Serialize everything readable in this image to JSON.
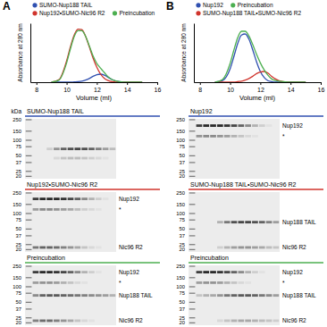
{
  "panel_labels": [
    "A",
    "B"
  ],
  "chart_data": [
    {
      "type": "line",
      "x_label": "Volume (ml)",
      "y_label": "Absorbance at 280 nm",
      "x": [
        9,
        9.5,
        10,
        10.25,
        10.5,
        10.75,
        11,
        11.25,
        11.5,
        11.75,
        12,
        12.25,
        12.5,
        12.75,
        13,
        13.5,
        14,
        15
      ],
      "xlim": [
        7.6,
        16
      ],
      "xticks": [
        8,
        10,
        12,
        14,
        16
      ],
      "ylim": [
        0,
        1.1
      ],
      "tick_labels": "x",
      "legend": "top-left",
      "series": [
        {
          "name": "SUMO-Nup188 TAIL",
          "color": "#3050b0",
          "values": [
            0,
            0,
            0,
            0,
            0.005,
            0.01,
            0.02,
            0.04,
            0.07,
            0.11,
            0.14,
            0.15,
            0.13,
            0.09,
            0.05,
            0.01,
            0,
            0
          ]
        },
        {
          "name": "Nup192•SUMO-Nic96 R2",
          "color": "#d0342c",
          "values": [
            0,
            0.05,
            0.4,
            0.66,
            0.88,
            0.99,
            0.98,
            0.86,
            0.66,
            0.45,
            0.28,
            0.15,
            0.07,
            0.03,
            0.01,
            0,
            0,
            0
          ]
        },
        {
          "name": "Preincubation",
          "color": "#4caf50",
          "values": [
            0,
            0.04,
            0.36,
            0.62,
            0.85,
            0.96,
            0.96,
            0.86,
            0.68,
            0.49,
            0.35,
            0.26,
            0.18,
            0.1,
            0.05,
            0.01,
            0,
            0
          ]
        }
      ]
    },
    {
      "type": "line",
      "x_label": "Volume (ml)",
      "y_label": "Absorbance at 280 nm",
      "x": [
        9,
        9.5,
        10,
        10.25,
        10.5,
        10.75,
        11,
        11.25,
        11.5,
        11.75,
        12,
        12.25,
        12.5,
        12.75,
        13,
        13.5,
        14,
        15
      ],
      "xlim": [
        7.6,
        16
      ],
      "xticks": [
        8,
        10,
        12,
        14,
        16
      ],
      "ylim": [
        0,
        1.1
      ],
      "tick_labels": "x",
      "legend": "top-left",
      "series": [
        {
          "name": "Nup192",
          "color": "#3050b0",
          "values": [
            0,
            0.03,
            0.25,
            0.48,
            0.72,
            0.88,
            0.9,
            0.8,
            0.6,
            0.38,
            0.2,
            0.09,
            0.03,
            0.01,
            0,
            0,
            0,
            0
          ]
        },
        {
          "name": "SUMO-Nup188 TAIL•SUMO-Nic96 R2",
          "color": "#d0342c",
          "values": [
            0,
            0,
            0,
            0,
            0.01,
            0.02,
            0.04,
            0.07,
            0.11,
            0.16,
            0.19,
            0.2,
            0.17,
            0.11,
            0.06,
            0.01,
            0,
            0
          ]
        },
        {
          "name": "Preincubation",
          "color": "#4caf50",
          "values": [
            0,
            0.05,
            0.35,
            0.6,
            0.83,
            0.95,
            0.95,
            0.86,
            0.7,
            0.52,
            0.36,
            0.23,
            0.13,
            0.06,
            0.03,
            0.01,
            0,
            0
          ]
        }
      ]
    }
  ],
  "gels": [
    {
      "panel": 0,
      "title": "SUMO-Nup188 TAIL",
      "color": "#3050b0",
      "unit": "kDa",
      "ylim": [
        260,
        18
      ],
      "markers": [
        250,
        150,
        100,
        75,
        50,
        37,
        25,
        20
      ],
      "bands": [
        {
          "kda": 68,
          "intensity": [
            0,
            0,
            0.15,
            0.45,
            0.7,
            0.8,
            0.85,
            0.8,
            0.7,
            0.55,
            0.4,
            0.25
          ]
        },
        {
          "kda": 45,
          "intensity": [
            0,
            0,
            0,
            0.1,
            0.2,
            0.25,
            0.25,
            0.2,
            0.15,
            0.1,
            0.05,
            0
          ]
        }
      ]
    },
    {
      "panel": 0,
      "title": "Nup192•SUMO-Nic96 R2",
      "color": "#d0342c",
      "ylim": [
        260,
        18
      ],
      "markers": [
        250,
        150,
        100,
        75,
        50,
        37,
        25,
        20
      ],
      "bands": [
        {
          "label": "Nup192",
          "kda": 192,
          "intensity": [
            0.9,
            1,
            1,
            1,
            0.95,
            0.85,
            0.7,
            0.5,
            0.3,
            0.15,
            0.05,
            0
          ]
        },
        {
          "label": "*",
          "kda": 120,
          "intensity": [
            0.4,
            0.5,
            0.5,
            0.45,
            0.4,
            0.35,
            0.25,
            0.15,
            0.1,
            0.05,
            0,
            0
          ]
        },
        {
          "label": "Nic96 R2",
          "kda": 22,
          "intensity": [
            0.6,
            0.7,
            0.7,
            0.65,
            0.55,
            0.45,
            0.35,
            0.2,
            0.1,
            0.05,
            0,
            0
          ]
        }
      ]
    },
    {
      "panel": 0,
      "title": "Preincubation",
      "color": "#4caf50",
      "ylim": [
        260,
        18
      ],
      "markers": [
        250,
        150,
        100,
        75,
        50,
        37,
        25,
        20
      ],
      "bands": [
        {
          "label": "Nup192",
          "kda": 192,
          "intensity": [
            0.9,
            1,
            1,
            0.95,
            0.85,
            0.7,
            0.5,
            0.3,
            0.15,
            0.05,
            0,
            0
          ]
        },
        {
          "label": "*",
          "kda": 120,
          "intensity": [
            0.4,
            0.45,
            0.45,
            0.4,
            0.3,
            0.2,
            0.1,
            0.05,
            0,
            0,
            0,
            0
          ]
        },
        {
          "label": "Nup188 TAIL",
          "kda": 68,
          "intensity": [
            0.5,
            0.7,
            0.75,
            0.75,
            0.7,
            0.65,
            0.6,
            0.55,
            0.5,
            0.45,
            0.4,
            0.3
          ]
        },
        {
          "label": "Nic96 R2",
          "kda": 22,
          "intensity": [
            0.55,
            0.65,
            0.65,
            0.55,
            0.45,
            0.35,
            0.2,
            0.1,
            0.05,
            0,
            0,
            0
          ]
        }
      ]
    },
    {
      "panel": 1,
      "title": "Nup192",
      "color": "#3050b0",
      "ylim": [
        260,
        18
      ],
      "markers": [
        250,
        150,
        100,
        75,
        50,
        37,
        25,
        20
      ],
      "bands": [
        {
          "label": "Nup192",
          "kda": 192,
          "intensity": [
            0.9,
            1,
            1,
            1,
            0.95,
            0.85,
            0.7,
            0.5,
            0.3,
            0.15,
            0.05,
            0
          ]
        },
        {
          "label": "*",
          "kda": 120,
          "intensity": [
            0.45,
            0.5,
            0.5,
            0.45,
            0.4,
            0.3,
            0.2,
            0.1,
            0.05,
            0,
            0,
            0
          ]
        }
      ]
    },
    {
      "panel": 1,
      "title": "SUMO-Nup188 TAIL•SUMO-Nic96 R2",
      "color": "#d0342c",
      "ylim": [
        260,
        18
      ],
      "markers": [
        250,
        150,
        100,
        75,
        50,
        37,
        25,
        20
      ],
      "bands": [
        {
          "label": "Nup188 TAIL",
          "kda": 68,
          "intensity": [
            0,
            0,
            0,
            0.3,
            0.6,
            0.8,
            0.85,
            0.85,
            0.8,
            0.7,
            0.55,
            0.4
          ]
        },
        {
          "label": "Nic96 R2",
          "kda": 22,
          "intensity": [
            0,
            0,
            0,
            0.15,
            0.3,
            0.4,
            0.45,
            0.45,
            0.4,
            0.35,
            0.25,
            0.2
          ]
        }
      ]
    },
    {
      "panel": 1,
      "title": "Preincubation",
      "color": "#4caf50",
      "ylim": [
        260,
        18
      ],
      "markers": [
        250,
        150,
        100,
        75,
        50,
        37,
        25,
        20
      ],
      "bands": [
        {
          "label": "Nup192",
          "kda": 192,
          "intensity": [
            0.9,
            1,
            1,
            0.95,
            0.85,
            0.7,
            0.5,
            0.3,
            0.15,
            0.05,
            0,
            0
          ]
        },
        {
          "label": "*",
          "kda": 120,
          "intensity": [
            0.4,
            0.45,
            0.45,
            0.4,
            0.3,
            0.2,
            0.1,
            0.05,
            0,
            0,
            0,
            0
          ]
        },
        {
          "label": "Nup188 TAIL",
          "kda": 68,
          "intensity": [
            0.2,
            0.3,
            0.35,
            0.45,
            0.6,
            0.7,
            0.75,
            0.75,
            0.7,
            0.6,
            0.5,
            0.4
          ]
        },
        {
          "label": "Nic96 R2",
          "kda": 22,
          "intensity": [
            0,
            0,
            0,
            0.1,
            0.2,
            0.3,
            0.35,
            0.35,
            0.3,
            0.25,
            0.2,
            0.15
          ]
        }
      ]
    }
  ]
}
